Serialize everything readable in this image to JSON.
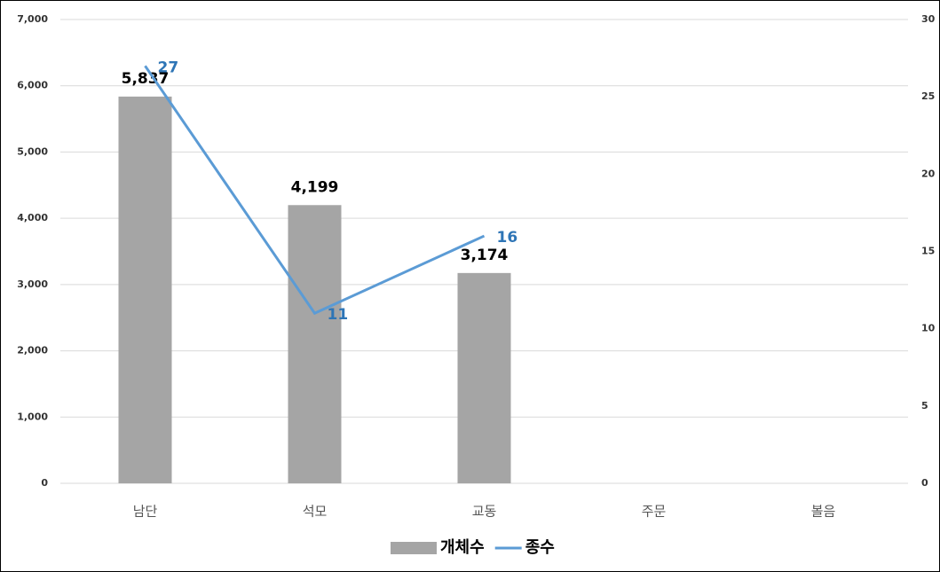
{
  "chart_data": {
    "type": "combo",
    "categories": [
      "남단",
      "석모",
      "교동",
      "주문",
      "볼음"
    ],
    "series": [
      {
        "name": "개체수",
        "type": "bar",
        "color": "#a5a5a5",
        "values": [
          5837,
          4199,
          3174,
          null,
          null
        ],
        "value_labels": [
          "5,837",
          "4,199",
          "3,174",
          null,
          null
        ]
      },
      {
        "name": "종수",
        "type": "line",
        "axis": "y2",
        "color": "#5b9bd5",
        "values": [
          27,
          11,
          16,
          null,
          null
        ]
      }
    ],
    "ylim": [
      0,
      7000
    ],
    "yticks": [
      0,
      {
        "value": 1000,
        "label": "1,000"
      },
      {
        "value": 2000,
        "label": "2,000"
      },
      {
        "value": 3000,
        "label": "3,000"
      },
      {
        "value": 4000,
        "label": "4,000"
      },
      {
        "value": 5000,
        "label": "5,000"
      },
      {
        "value": 6000,
        "label": "6,000"
      },
      {
        "value": 7000,
        "label": "7,000"
      }
    ],
    "y2lim": [
      0,
      30
    ],
    "y2ticks": [
      0,
      5,
      10,
      15,
      20,
      25,
      30
    ],
    "grid": true,
    "legend": "bottom"
  }
}
